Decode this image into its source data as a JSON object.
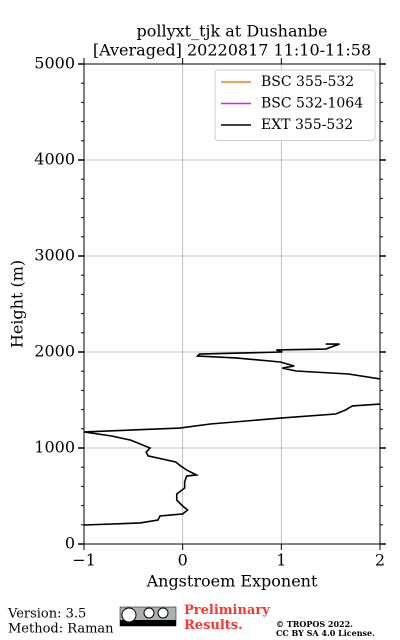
{
  "chart_data": {
    "type": "line",
    "title": "pollyxt_tjk at Dushanbe",
    "subtitle": "[Averaged] 20220817 11:10-11:58",
    "xlabel": "Angstroem Exponent",
    "ylabel": "Height (m)",
    "xlim": [
      -1,
      2
    ],
    "xticks": [
      {
        "value": -1,
        "label": "−1"
      },
      0,
      1,
      2
    ],
    "ylim": [
      0,
      5000
    ],
    "yticks": [
      0,
      1000,
      2000,
      3000,
      4000,
      5000
    ],
    "grid": true,
    "legend": "upper right",
    "series": [
      {
        "name": "BSC 355-532",
        "color": "#ff7f0e"
      },
      {
        "name": "BSC 532-1064",
        "color": "#e020e0"
      },
      {
        "name": "EXT 355-532",
        "color": "#000000",
        "heights": [
          198,
          219,
          250,
          292,
          313,
          354,
          396,
          458,
          521,
          583,
          646,
          708,
          719,
          771,
          813,
          854,
          917,
          958,
          1000,
          1083,
          1125,
          1167,
          1208,
          1250,
          1313,
          1354,
          1396,
          1438,
          1458,
          null,
          1719,
          1771,
          1802,
          1833,
          1854,
          1896,
          1938,
          1958,
          1979,
          2000,
          2021,
          2031,
          2083,
          2083
        ],
        "values": [
          -1,
          -0.43,
          -0.25,
          -0.23,
          0,
          0.05,
          0,
          -0.06,
          -0.06,
          0.02,
          0.02,
          0.04,
          0.14,
          0.04,
          -0.02,
          -0.07,
          -0.35,
          -0.37,
          -0.33,
          -0.53,
          -0.72,
          -1,
          -0.03,
          0.28,
          1.01,
          1.55,
          1.65,
          1.72,
          2,
          null,
          2,
          1.68,
          1.15,
          1.01,
          1.13,
          0.99,
          0.54,
          0.15,
          0.17,
          1.01,
          0.95,
          1.45,
          1.59,
          1.45
        ]
      }
    ]
  },
  "footer": {
    "version": "Version: 3.5",
    "method": "Method: Raman",
    "notice": "Preliminary Results.",
    "copyright": "© TROPOS 2022.",
    "license": "CC BY SA 4.0 License."
  }
}
